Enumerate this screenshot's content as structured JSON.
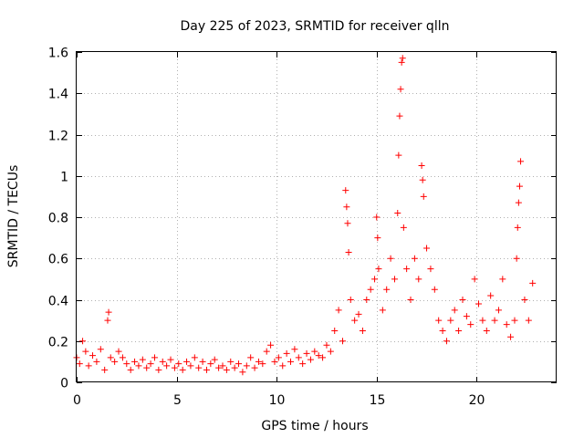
{
  "chart_data": {
    "type": "scatter",
    "title": "Day 225 of 2023, SRMTID for receiver qlln",
    "xlabel": "GPS time / hours",
    "ylabel": "SRMTID / TECUs",
    "xlim": [
      0,
      24
    ],
    "ylim": [
      0,
      1.6
    ],
    "xticks": [
      "0",
      "5",
      "10",
      "15",
      "20"
    ],
    "xtick_values": [
      0,
      5,
      10,
      15,
      20
    ],
    "yticks": [
      "0",
      "0.2",
      "0.4",
      "0.6",
      "0.8",
      "1",
      "1.2",
      "1.4",
      "1.6"
    ],
    "ytick_values": [
      0,
      0.2,
      0.4,
      0.6,
      0.8,
      1.0,
      1.2,
      1.4,
      1.6
    ],
    "grid": true,
    "marker": "+",
    "color": "#ff0000",
    "series": [
      {
        "name": "SRMTID",
        "x": [
          0.0,
          0.15,
          0.3,
          0.45,
          0.6,
          0.8,
          1.0,
          1.2,
          1.4,
          1.55,
          1.6,
          1.7,
          1.9,
          2.1,
          2.3,
          2.5,
          2.7,
          2.9,
          3.1,
          3.3,
          3.5,
          3.7,
          3.9,
          4.1,
          4.3,
          4.5,
          4.7,
          4.9,
          5.1,
          5.3,
          5.5,
          5.7,
          5.9,
          6.1,
          6.3,
          6.5,
          6.7,
          6.9,
          7.1,
          7.3,
          7.5,
          7.7,
          7.9,
          8.1,
          8.3,
          8.5,
          8.7,
          8.9,
          9.1,
          9.3,
          9.5,
          9.7,
          9.9,
          10.1,
          10.3,
          10.5,
          10.7,
          10.9,
          11.1,
          11.3,
          11.5,
          11.7,
          11.9,
          12.1,
          12.3,
          12.5,
          12.7,
          12.9,
          13.1,
          13.3,
          13.45,
          13.5,
          13.55,
          13.6,
          13.7,
          13.9,
          14.1,
          14.3,
          14.5,
          14.7,
          14.9,
          15.0,
          15.05,
          15.1,
          15.3,
          15.5,
          15.7,
          15.9,
          16.05,
          16.1,
          16.15,
          16.2,
          16.25,
          16.3,
          16.35,
          16.5,
          16.7,
          16.9,
          17.1,
          17.25,
          17.3,
          17.35,
          17.5,
          17.7,
          17.9,
          18.1,
          18.3,
          18.5,
          18.7,
          18.9,
          19.1,
          19.3,
          19.5,
          19.7,
          19.9,
          20.1,
          20.3,
          20.5,
          20.7,
          20.9,
          21.1,
          21.3,
          21.5,
          21.7,
          21.9,
          22.0,
          22.05,
          22.1,
          22.15,
          22.2,
          22.4,
          22.6,
          22.8
        ],
        "y": [
          0.12,
          0.09,
          0.2,
          0.15,
          0.08,
          0.13,
          0.1,
          0.16,
          0.06,
          0.3,
          0.34,
          0.12,
          0.1,
          0.15,
          0.12,
          0.09,
          0.06,
          0.1,
          0.08,
          0.11,
          0.07,
          0.09,
          0.12,
          0.06,
          0.1,
          0.08,
          0.11,
          0.07,
          0.09,
          0.06,
          0.1,
          0.08,
          0.12,
          0.07,
          0.1,
          0.06,
          0.09,
          0.11,
          0.07,
          0.08,
          0.06,
          0.1,
          0.07,
          0.09,
          0.05,
          0.08,
          0.12,
          0.07,
          0.1,
          0.09,
          0.15,
          0.18,
          0.1,
          0.12,
          0.08,
          0.14,
          0.1,
          0.16,
          0.12,
          0.09,
          0.14,
          0.11,
          0.15,
          0.13,
          0.12,
          0.18,
          0.15,
          0.25,
          0.35,
          0.2,
          0.93,
          0.85,
          0.77,
          0.63,
          0.4,
          0.3,
          0.33,
          0.25,
          0.4,
          0.45,
          0.5,
          0.8,
          0.7,
          0.55,
          0.35,
          0.45,
          0.6,
          0.5,
          0.82,
          1.1,
          1.29,
          1.42,
          1.55,
          1.57,
          0.75,
          0.55,
          0.4,
          0.6,
          0.5,
          1.05,
          0.98,
          0.9,
          0.65,
          0.55,
          0.45,
          0.3,
          0.25,
          0.2,
          0.3,
          0.35,
          0.25,
          0.4,
          0.32,
          0.28,
          0.5,
          0.38,
          0.3,
          0.25,
          0.42,
          0.3,
          0.35,
          0.5,
          0.28,
          0.22,
          0.3,
          0.6,
          0.75,
          0.87,
          0.95,
          1.07,
          0.4,
          0.3,
          0.48
        ]
      }
    ]
  }
}
